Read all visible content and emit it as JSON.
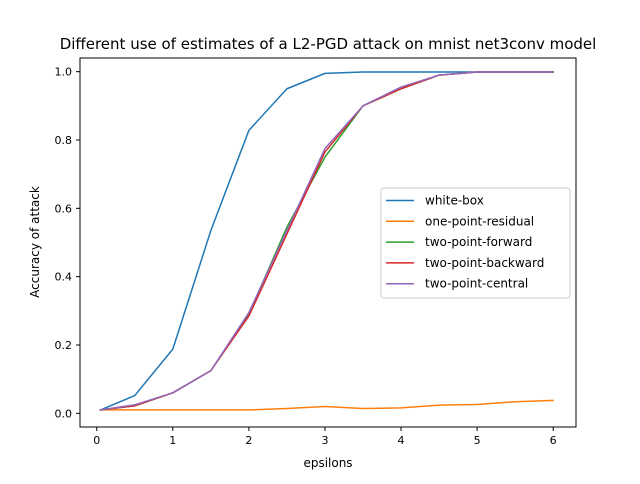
{
  "chart_data": {
    "type": "line",
    "title": "Different use of estimates of a L2-PGD attack on mnist net3conv model",
    "xlabel": "epsilons",
    "ylabel": "Accuracy of attack",
    "xlim": [
      -0.22,
      6.3
    ],
    "ylim": [
      -0.04,
      1.04
    ],
    "xticks": [
      0,
      1,
      2,
      3,
      4,
      5,
      6
    ],
    "yticks": [
      0.0,
      0.2,
      0.4,
      0.6,
      0.8,
      1.0
    ],
    "grid": false,
    "legend_position": "center-right",
    "x": [
      0.05,
      0.5,
      1.0,
      1.5,
      2.0,
      2.5,
      3.0,
      3.5,
      4.0,
      4.5,
      5.0,
      5.5,
      6.0
    ],
    "series": [
      {
        "name": "white-box",
        "color": "#1f77b4",
        "values": [
          0.01,
          0.052,
          0.188,
          0.535,
          0.828,
          0.95,
          0.995,
          0.999,
          0.999,
          0.999,
          0.999,
          0.999,
          0.999
        ]
      },
      {
        "name": "one-point-residual",
        "color": "#ff7f0e",
        "values": [
          0.01,
          0.01,
          0.01,
          0.01,
          0.01,
          0.014,
          0.02,
          0.014,
          0.016,
          0.024,
          0.026,
          0.034,
          0.038
        ]
      },
      {
        "name": "two-point-forward",
        "color": "#2ca02c",
        "values": [
          0.01,
          0.022,
          0.06,
          0.125,
          0.29,
          0.545,
          0.75,
          0.9,
          0.95,
          0.99,
          0.999,
          0.999,
          0.999
        ]
      },
      {
        "name": "two-point-backward",
        "color": "#d62728",
        "values": [
          0.01,
          0.022,
          0.06,
          0.125,
          0.285,
          0.525,
          0.765,
          0.9,
          0.95,
          0.99,
          0.999,
          0.999,
          0.999
        ]
      },
      {
        "name": "two-point-central",
        "color": "#9467bd",
        "values": [
          0.01,
          0.025,
          0.06,
          0.125,
          0.295,
          0.535,
          0.775,
          0.9,
          0.955,
          0.99,
          0.999,
          0.999,
          0.999
        ]
      }
    ]
  }
}
